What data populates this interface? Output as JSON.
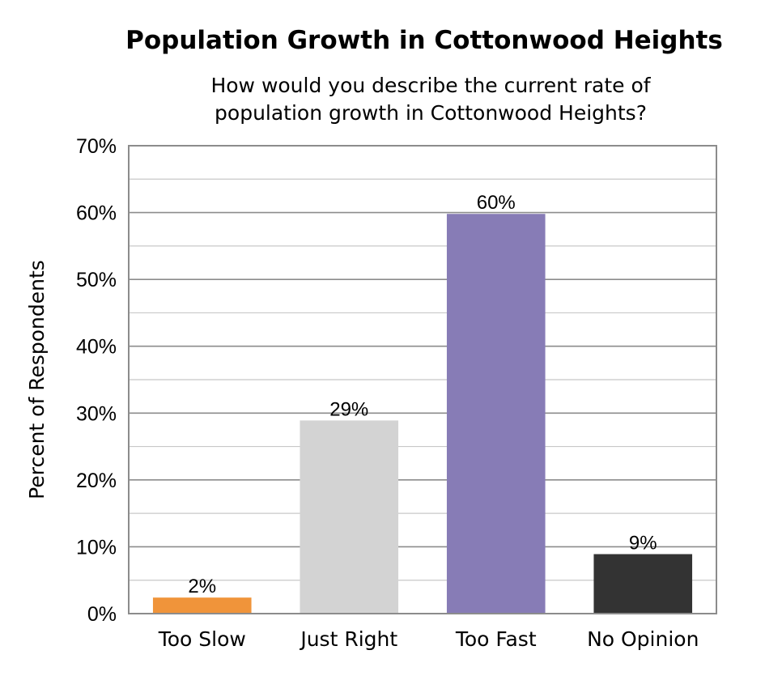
{
  "chart_data": {
    "type": "bar",
    "title": "Population Growth in Cottonwood Heights",
    "subtitle_lines": [
      "How would you describe the current rate of",
      "population growth in Cottonwood Heights?"
    ],
    "xlabel": "",
    "ylabel": "Percent of Respondents",
    "categories": [
      "Too Slow",
      "Just Right",
      "Too Fast",
      "No Opinion"
    ],
    "values": [
      2.4,
      28.9,
      59.8,
      8.9
    ],
    "data_labels": [
      "2%",
      "29%",
      "60%",
      "9%"
    ],
    "bar_colors": [
      "#f0943a",
      "#d3d3d3",
      "#877cb6",
      "#333333"
    ],
    "ylim": [
      0,
      70
    ],
    "y_ticks": [
      0,
      10,
      20,
      30,
      40,
      50,
      60,
      70
    ],
    "y_tick_labels": [
      "0%",
      "10%",
      "20%",
      "30%",
      "40%",
      "50%",
      "60%",
      "70%"
    ],
    "minor_gridlines": true,
    "grid": true,
    "legend": "none"
  }
}
